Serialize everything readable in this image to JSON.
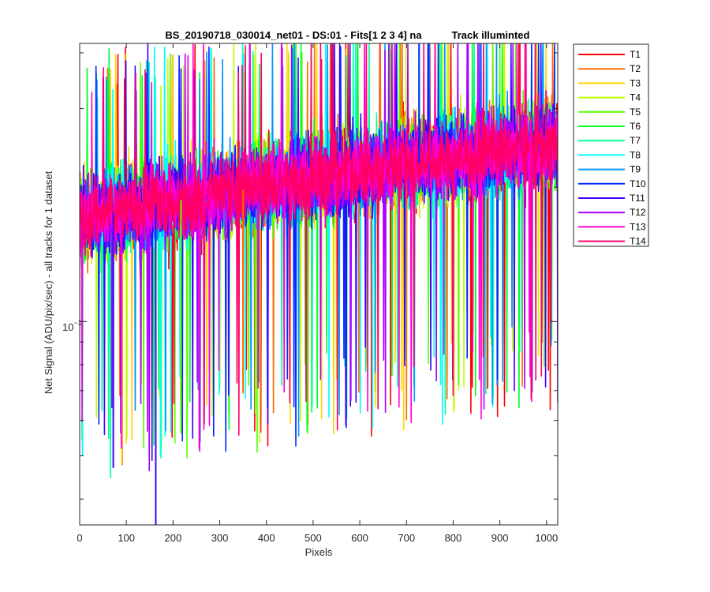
{
  "chart_data": {
    "type": "line",
    "title": "BS_20190718_030014_net01 - DS:01 - Fits[1  2  3  4]   na",
    "title_right": "Track illuminted",
    "xlabel": "Pixels",
    "ylabel": "Net Signal (ADU/pix/sec) - all tracks for 1 dataset",
    "xlim": [
      0,
      1024
    ],
    "ylim": [
      0.035,
      0.42
    ],
    "y_scale": "log",
    "x_ticks": [
      0,
      100,
      200,
      300,
      400,
      500,
      600,
      700,
      800,
      900,
      1000
    ],
    "x_tick_labels": [
      "0",
      "100",
      "200",
      "300",
      "400",
      "500",
      "600",
      "700",
      "800",
      "900",
      "1000"
    ],
    "y_tick_label": {
      "value": 0.1,
      "base": "10",
      "exponent": "−1"
    },
    "grid": false,
    "legend_position": "outside-right",
    "series": [
      {
        "name": "T1",
        "color": "#ff0000"
      },
      {
        "name": "T2",
        "color": "#ff6a00"
      },
      {
        "name": "T3",
        "color": "#ffd500"
      },
      {
        "name": "T4",
        "color": "#bfff00"
      },
      {
        "name": "T5",
        "color": "#55ff00"
      },
      {
        "name": "T6",
        "color": "#00ff2a"
      },
      {
        "name": "T7",
        "color": "#00ff95"
      },
      {
        "name": "T8",
        "color": "#00ffff"
      },
      {
        "name": "T9",
        "color": "#0095ff"
      },
      {
        "name": "T10",
        "color": "#002aff"
      },
      {
        "name": "T11",
        "color": "#4000ff"
      },
      {
        "name": "T12",
        "color": "#aa00ff"
      },
      {
        "name": "T13",
        "color": "#ff00d4"
      },
      {
        "name": "T14",
        "color": "#ff0066"
      }
    ],
    "trend": {
      "x": [
        0,
        1024
      ],
      "median_y": [
        0.17,
        0.25
      ]
    },
    "notable_spikes": [
      {
        "x": 727,
        "y": 0.42
      },
      {
        "x": 163,
        "y": 0.035
      },
      {
        "x": 72,
        "y": 0.047
      },
      {
        "x": 217,
        "y": 0.056
      },
      {
        "x": 350,
        "y": 0.069
      },
      {
        "x": 965,
        "y": 0.075
      }
    ]
  }
}
